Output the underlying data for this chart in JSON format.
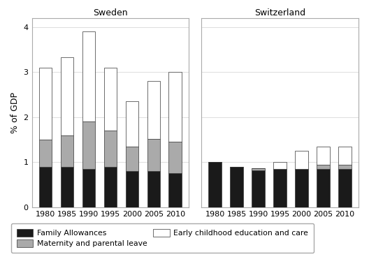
{
  "years": [
    1980,
    1985,
    1990,
    1995,
    2000,
    2005,
    2010
  ],
  "sweden": {
    "family_allowances": [
      0.9,
      0.9,
      0.85,
      0.9,
      0.8,
      0.8,
      0.75
    ],
    "parental_leave": [
      0.6,
      0.7,
      1.05,
      0.8,
      0.55,
      0.72,
      0.7
    ],
    "childcare": [
      1.6,
      1.73,
      2.0,
      1.4,
      1.0,
      1.28,
      1.55
    ]
  },
  "switzerland": {
    "family_allowances": [
      1.0,
      0.9,
      0.82,
      0.85,
      0.85,
      0.85,
      0.85
    ],
    "parental_leave": [
      0.0,
      0.0,
      0.05,
      0.0,
      0.0,
      0.1,
      0.1
    ],
    "childcare": [
      0.0,
      0.0,
      0.0,
      0.15,
      0.4,
      0.4,
      0.4
    ]
  },
  "colors": {
    "family_allowances": "#1a1a1a",
    "parental_leave": "#aaaaaa",
    "childcare": "#ffffff"
  },
  "edgecolor": "#333333",
  "bar_width": 0.6,
  "ylim": [
    0,
    4.2
  ],
  "yticks": [
    0,
    1,
    2,
    3,
    4
  ],
  "ylabel": "% of GDP",
  "panel_labels": [
    "Sweden",
    "Switzerland"
  ],
  "legend_labels": [
    "Family Allowances",
    "Maternity and parental leave",
    "Early childhood education and care"
  ],
  "background_color": "#ffffff",
  "panel_bg": "#ffffff",
  "grid_color": "#dddddd",
  "spine_color": "#aaaaaa"
}
